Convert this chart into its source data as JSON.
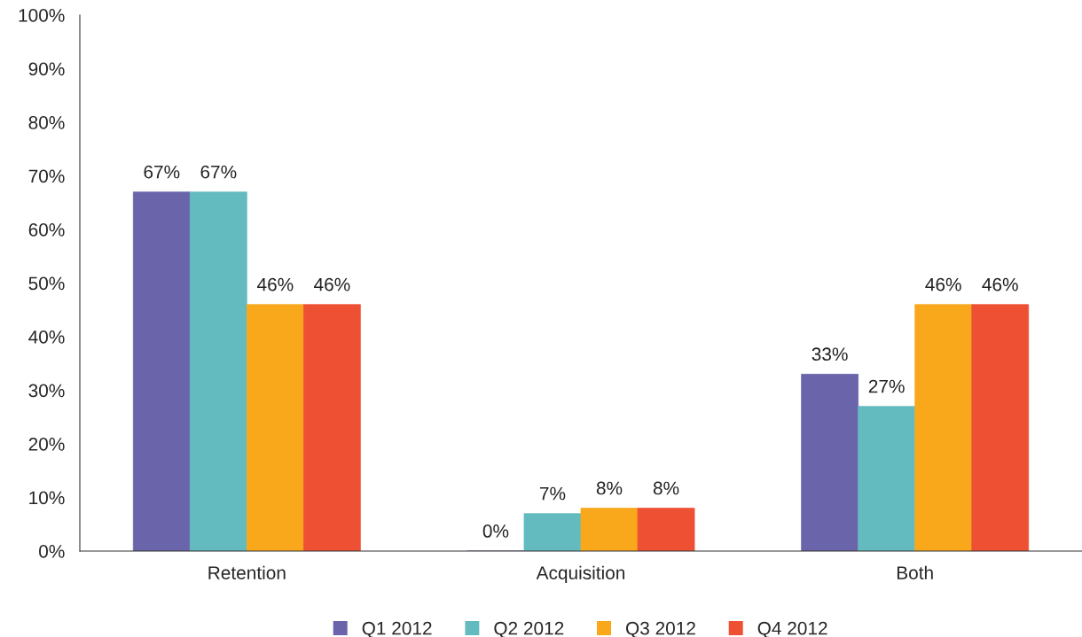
{
  "chart_data": {
    "type": "bar",
    "categories": [
      "Retention",
      "Acquisition",
      "Both"
    ],
    "series": [
      {
        "name": "Q1 2012",
        "color": "#6a64ab",
        "values": [
          67,
          0,
          33
        ],
        "value_labels": [
          "67%",
          "0%",
          "33%"
        ]
      },
      {
        "name": "Q2 2012",
        "color": "#63bbbf",
        "values": [
          67,
          7,
          27
        ],
        "value_labels": [
          "67%",
          "7%",
          "27%"
        ]
      },
      {
        "name": "Q3 2012",
        "color": "#f9a81b",
        "values": [
          46,
          8,
          46
        ],
        "value_labels": [
          "46%",
          "8%",
          "46%"
        ]
      },
      {
        "name": "Q4 2012",
        "color": "#ee5033",
        "values": [
          46,
          8,
          46
        ],
        "value_labels": [
          "46%",
          "8%",
          "46%"
        ]
      }
    ],
    "ylim": [
      0,
      100
    ],
    "yticks": [
      {
        "value": 0,
        "label": "0%"
      },
      {
        "value": 10,
        "label": "10%"
      },
      {
        "value": 20,
        "label": "20%"
      },
      {
        "value": 30,
        "label": "30%"
      },
      {
        "value": 40,
        "label": "40%"
      },
      {
        "value": 50,
        "label": "50%"
      },
      {
        "value": 60,
        "label": "60%"
      },
      {
        "value": 70,
        "label": "70%"
      },
      {
        "value": 80,
        "label": "80%"
      },
      {
        "value": 90,
        "label": "90%"
      },
      {
        "value": 100,
        "label": "100%"
      }
    ],
    "grid": false,
    "legend": "bottom"
  }
}
